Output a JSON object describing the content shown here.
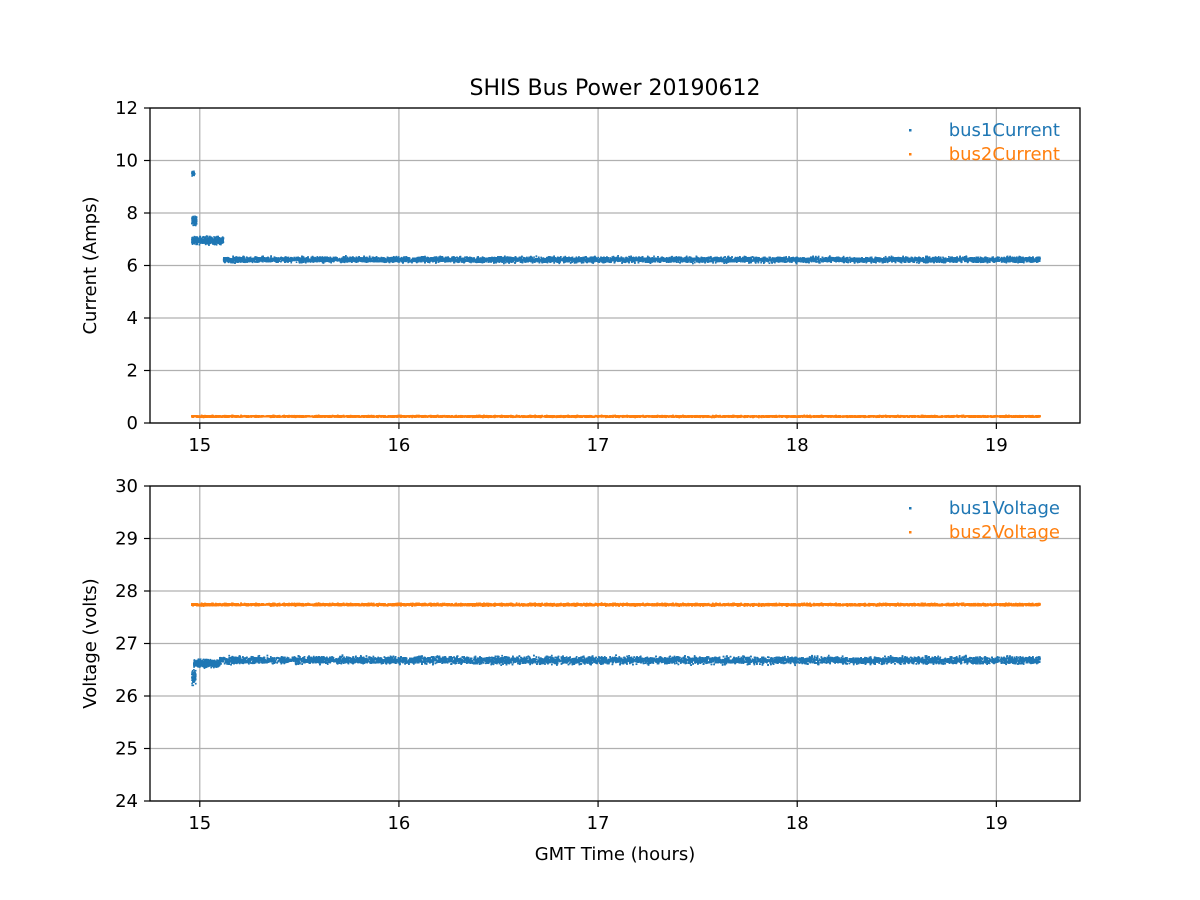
{
  "figure": {
    "title": "SHIS Bus Power 20190612"
  },
  "chart_data": [
    {
      "type": "scatter",
      "xlabel": "",
      "ylabel": "Current (Amps)",
      "xlim": [
        14.75,
        19.42
      ],
      "ylim": [
        0,
        12
      ],
      "x_ticks": [
        15,
        16,
        17,
        18,
        19
      ],
      "y_ticks": [
        0,
        2,
        4,
        6,
        8,
        10,
        12
      ],
      "grid": true,
      "legend_position": "top-right",
      "series": [
        {
          "name": "bus1Current",
          "color": "#1f77b4",
          "segments": [
            {
              "x": [
                14.96,
                14.975
              ],
              "y": 9.5,
              "spread": 0.12
            },
            {
              "x": [
                14.96,
                14.985
              ],
              "y": 7.7,
              "spread": 0.25
            },
            {
              "x": [
                14.96,
                15.12
              ],
              "y": 6.95,
              "spread": 0.2
            },
            {
              "x": [
                15.12,
                19.22
              ],
              "y": 6.22,
              "spread": 0.15
            }
          ]
        },
        {
          "name": "bus2Current",
          "color": "#ff7f0e",
          "segments": [
            {
              "x": [
                14.96,
                19.22
              ],
              "y": 0.25,
              "spread": 0.04
            }
          ]
        }
      ]
    },
    {
      "type": "scatter",
      "xlabel": "GMT Time (hours)",
      "ylabel": "Voltage (volts)",
      "xlim": [
        14.75,
        19.42
      ],
      "ylim": [
        24,
        30
      ],
      "x_ticks": [
        15,
        16,
        17,
        18,
        19
      ],
      "y_ticks": [
        24,
        25,
        26,
        27,
        28,
        29,
        30
      ],
      "grid": true,
      "legend_position": "top-right",
      "series": [
        {
          "name": "bus1Voltage",
          "color": "#1f77b4",
          "segments": [
            {
              "x": [
                14.96,
                14.98
              ],
              "y": 26.35,
              "spread": 0.2
            },
            {
              "x": [
                14.97,
                15.1
              ],
              "y": 26.62,
              "spread": 0.1
            },
            {
              "x": [
                15.1,
                19.22
              ],
              "y": 26.68,
              "spread": 0.1
            }
          ]
        },
        {
          "name": "bus2Voltage",
          "color": "#ff7f0e",
          "segments": [
            {
              "x": [
                14.96,
                19.22
              ],
              "y": 27.74,
              "spread": 0.03
            }
          ]
        }
      ]
    }
  ]
}
